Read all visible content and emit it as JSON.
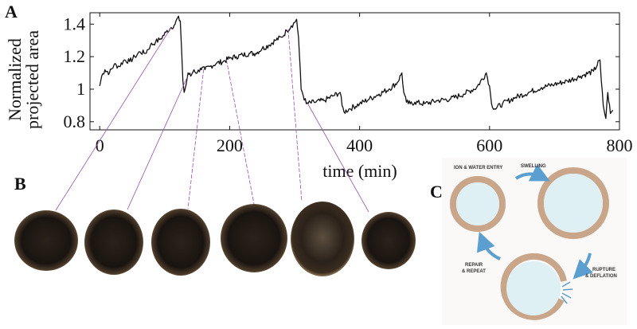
{
  "panels": {
    "a_label": "A",
    "b_label": "B",
    "c_label": "C"
  },
  "chart_data": {
    "type": "line",
    "xlabel": "time (min)",
    "ylabel_lines": [
      "Normalized",
      "projected area"
    ],
    "xlim": [
      -15,
      800
    ],
    "ylim": [
      0.75,
      1.47
    ],
    "xticks": [
      0,
      200,
      400,
      600,
      800
    ],
    "xtick_labels": [
      "0",
      "200",
      "400",
      "600",
      "800"
    ],
    "yticks": [
      0.8,
      1.0,
      1.2,
      1.4
    ],
    "ytick_labels": [
      "0.8",
      "1",
      "1.2",
      "1.4"
    ],
    "grid": false,
    "series": [
      {
        "x": [
          0,
          3,
          8,
          15,
          22,
          30,
          38,
          46,
          54,
          62,
          70,
          78,
          86,
          94,
          102,
          110,
          116,
          120,
          124,
          126,
          128,
          130,
          133,
          136,
          140,
          145,
          150,
          155,
          162,
          170,
          180,
          190,
          200,
          210,
          220,
          230,
          240,
          250,
          260,
          270,
          280,
          288,
          295,
          300,
          303,
          306,
          310,
          318,
          330,
          345,
          360,
          370,
          373,
          376,
          385,
          400,
          415,
          430,
          445,
          458,
          465,
          468,
          472,
          478,
          485,
          500,
          520,
          540,
          560,
          580,
          595,
          600,
          603,
          608,
          620,
          640,
          660,
          680,
          700,
          720,
          740,
          760,
          770,
          772,
          775,
          779,
          782,
          786,
          790
        ],
        "y": [
          1.02,
          1.08,
          1.12,
          1.1,
          1.15,
          1.14,
          1.18,
          1.17,
          1.2,
          1.23,
          1.22,
          1.27,
          1.29,
          1.31,
          1.35,
          1.38,
          1.4,
          1.44,
          1.42,
          1.25,
          1.05,
          0.98,
          1.03,
          1.1,
          1.08,
          1.12,
          1.1,
          1.13,
          1.12,
          1.14,
          1.16,
          1.17,
          1.19,
          1.2,
          1.21,
          1.22,
          1.22,
          1.25,
          1.27,
          1.3,
          1.32,
          1.36,
          1.39,
          1.41,
          1.43,
          1.32,
          1.0,
          0.91,
          0.92,
          0.93,
          0.96,
          0.98,
          0.9,
          0.86,
          0.88,
          0.91,
          0.94,
          0.97,
          1.0,
          1.04,
          1.1,
          0.98,
          0.92,
          0.91,
          0.92,
          0.91,
          0.93,
          0.94,
          0.97,
          1.01,
          1.1,
          1.02,
          0.91,
          0.88,
          0.91,
          0.95,
          0.98,
          1.01,
          1.03,
          1.05,
          1.08,
          1.11,
          1.18,
          1.05,
          0.9,
          0.82,
          0.98,
          0.85,
          0.87
        ]
      }
    ],
    "annotation_times": [
      110,
      135,
      160,
      195,
      290,
      320
    ]
  },
  "diagram": {
    "label_ion": "ION & WATER ENTRY",
    "label_swelling": "SWELLING",
    "label_repair_1": "REPAIR",
    "label_repair_2": "& REPEAT",
    "label_rupture_1": "RUPTURE",
    "label_rupture_2": "& DEFLATION",
    "membrane_color": "#c9a58a",
    "interior_color": "#dff0f5",
    "arrow_color": "#5a9fcf"
  },
  "colors": {
    "line": "#111111",
    "connector": "#9b4fb0",
    "cell_dark": "#1a1410",
    "cell_rim": "#b89a6c"
  }
}
